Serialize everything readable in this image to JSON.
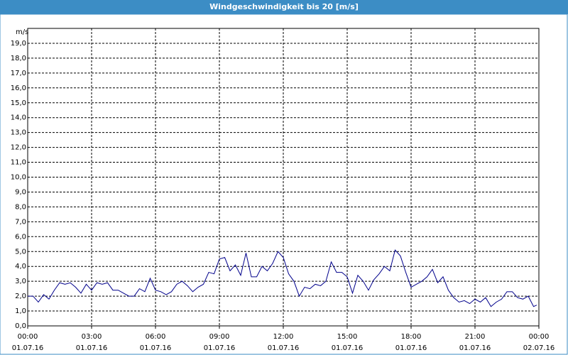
{
  "chart_data": {
    "type": "line",
    "title": "Windgeschwindigkeit bis 20 [m/s]",
    "y_label": "m/s",
    "xlim": [
      0,
      24
    ],
    "ylim": [
      0,
      20
    ],
    "grid": true,
    "xticks": [
      {
        "value": 0,
        "label": [
          "00:00",
          "01.07.16"
        ]
      },
      {
        "value": 3,
        "label": [
          "03:00",
          "01.07.16"
        ]
      },
      {
        "value": 6,
        "label": [
          "06:00",
          "01.07.16"
        ]
      },
      {
        "value": 9,
        "label": [
          "09:00",
          "01.07.16"
        ]
      },
      {
        "value": 12,
        "label": [
          "12:00",
          "01.07.16"
        ]
      },
      {
        "value": 15,
        "label": [
          "15:00",
          "01.07.16"
        ]
      },
      {
        "value": 18,
        "label": [
          "18:00",
          "01.07.16"
        ]
      },
      {
        "value": 21,
        "label": [
          "21:00",
          "01.07.16"
        ]
      },
      {
        "value": 24,
        "label": [
          "00:00",
          "02.07.16"
        ]
      }
    ],
    "yticks": [
      {
        "value": 0,
        "label": "0,0"
      },
      {
        "value": 1,
        "label": "1,0"
      },
      {
        "value": 2,
        "label": "2,0"
      },
      {
        "value": 3,
        "label": "3,0"
      },
      {
        "value": 4,
        "label": "4,0"
      },
      {
        "value": 5,
        "label": "5,0"
      },
      {
        "value": 6,
        "label": "6,0"
      },
      {
        "value": 7,
        "label": "7,0"
      },
      {
        "value": 8,
        "label": "8,0"
      },
      {
        "value": 9,
        "label": "9,0"
      },
      {
        "value": 10,
        "label": "10,0"
      },
      {
        "value": 11,
        "label": "11,0"
      },
      {
        "value": 12,
        "label": "12,0"
      },
      {
        "value": 13,
        "label": "13,0"
      },
      {
        "value": 14,
        "label": "14,0"
      },
      {
        "value": 15,
        "label": "15,0"
      },
      {
        "value": 16,
        "label": "16,0"
      },
      {
        "value": 17,
        "label": "17,0"
      },
      {
        "value": 18,
        "label": "18,0"
      },
      {
        "value": 19,
        "label": "19,0"
      }
    ],
    "x": [
      0,
      0.25,
      0.5,
      0.75,
      1,
      1.25,
      1.5,
      1.75,
      2,
      2.25,
      2.5,
      2.75,
      3,
      3.25,
      3.5,
      3.75,
      4,
      4.25,
      4.5,
      4.75,
      5,
      5.25,
      5.5,
      5.75,
      6,
      6.25,
      6.5,
      6.75,
      7,
      7.25,
      7.5,
      7.75,
      8,
      8.25,
      8.5,
      8.75,
      9,
      9.25,
      9.5,
      9.75,
      10,
      10.25,
      10.5,
      10.75,
      11,
      11.25,
      11.5,
      11.75,
      12,
      12.25,
      12.5,
      12.75,
      13,
      13.25,
      13.5,
      13.75,
      14,
      14.25,
      14.5,
      14.75,
      15,
      15.25,
      15.5,
      15.75,
      16,
      16.25,
      16.5,
      16.75,
      17,
      17.25,
      17.5,
      17.75,
      18,
      18.25,
      18.5,
      18.75,
      19,
      19.25,
      19.5,
      19.75,
      20,
      20.25,
      20.5,
      20.75,
      21,
      21.25,
      21.5,
      21.75,
      22,
      22.25,
      22.5,
      22.75,
      23,
      23.25,
      23.5,
      23.75,
      23.9
    ],
    "series": [
      {
        "color": "#00008b",
        "values": [
          2.0,
          2.0,
          1.6,
          2.1,
          1.8,
          2.4,
          2.9,
          2.8,
          2.9,
          2.6,
          2.2,
          2.8,
          2.4,
          2.9,
          2.8,
          2.9,
          2.4,
          2.4,
          2.2,
          2.0,
          2.0,
          2.5,
          2.3,
          3.2,
          2.4,
          2.3,
          2.1,
          2.3,
          2.8,
          3.0,
          2.7,
          2.3,
          2.6,
          2.8,
          3.6,
          3.5,
          4.5,
          4.6,
          3.7,
          4.1,
          3.4,
          4.9,
          3.3,
          3.3,
          4.0,
          3.7,
          4.2,
          5.0,
          4.6,
          3.5,
          3.0,
          2.0,
          2.6,
          2.5,
          2.8,
          2.7,
          3.0,
          4.3,
          3.6,
          3.6,
          3.3,
          2.2,
          3.4,
          3.0,
          2.4,
          3.1,
          3.5,
          4.0,
          3.7,
          5.1,
          4.7,
          3.6,
          2.6,
          2.8,
          3.0,
          3.3,
          3.8,
          2.9,
          3.3,
          2.4,
          1.9,
          1.6,
          1.7,
          1.5,
          1.8,
          1.6,
          1.9,
          1.3,
          1.6,
          1.8,
          2.3,
          2.3,
          1.9,
          1.8,
          2.0,
          1.3,
          1.4
        ]
      }
    ]
  }
}
